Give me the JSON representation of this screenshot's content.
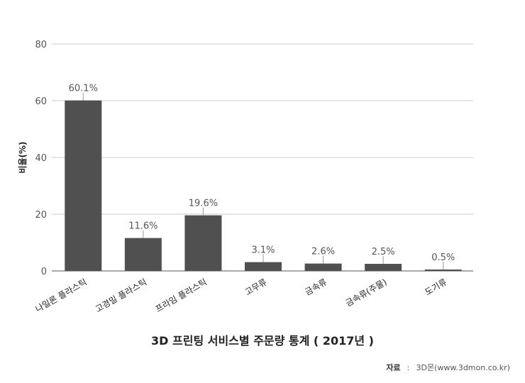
{
  "chart_data": {
    "type": "bar",
    "title": "3D 프린팅 서비스별 주문량 통계 ( 2017년 )",
    "ylabel": "비율(%)",
    "xlabel": "",
    "categories": [
      "나일론 플라스틱",
      "고경밀 플라스틱",
      "프라임 플라스틱",
      "고무류",
      "금속류",
      "금속류(주물)",
      "도기류"
    ],
    "values": [
      60.1,
      11.6,
      19.6,
      3.1,
      2.6,
      2.5,
      0.5
    ],
    "data_labels": [
      "60.1%",
      "11.6%",
      "19.6%",
      "3.1%",
      "2.6%",
      "2.5%",
      "0.5%"
    ],
    "ylim": [
      0,
      80
    ],
    "yticks": [
      0,
      20,
      40,
      60,
      80
    ],
    "grid": true,
    "legend": "none",
    "bar_color": "#505050",
    "grid_color": "#cccccc"
  },
  "source": {
    "label": "자료",
    "separator": ":",
    "text": "3D몬(www.3dmon.co.kr)"
  }
}
